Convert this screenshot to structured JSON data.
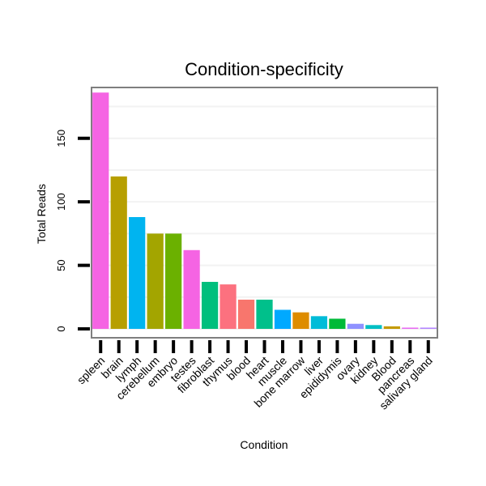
{
  "chart_data": {
    "type": "bar",
    "title": "Condition-specificity",
    "xlabel": "Condition",
    "ylabel": "Total Reads",
    "ylim": [
      -7,
      190
    ],
    "yticks": [
      0,
      50,
      100,
      150
    ],
    "grid": true,
    "legend": "none",
    "categories": [
      "spleen",
      "brain",
      "lymph",
      "cerebellum",
      "embryo",
      "testes",
      "fibroblast",
      "thymus",
      "blood",
      "heart",
      "muscle",
      "bone marrow",
      "liver",
      "epididymis",
      "ovary",
      "kidney",
      "Blood",
      "pancreas",
      "salivary gland"
    ],
    "values": [
      186,
      120,
      88,
      75,
      75,
      62,
      37,
      35,
      23,
      23,
      15,
      13,
      10,
      8,
      4,
      3,
      2,
      1,
      1
    ],
    "colors": [
      "#f564e3",
      "#b79f00",
      "#00b4f0",
      "#a3a500",
      "#6bb100",
      "#f564e3",
      "#00bf7d",
      "#fc717f",
      "#f8766d",
      "#00c08b",
      "#00a9ff",
      "#de8c00",
      "#00bcd8",
      "#00ba38",
      "#8f91ff",
      "#00bfc4",
      "#c49a00",
      "#e76bf3",
      "#b385ff"
    ]
  }
}
